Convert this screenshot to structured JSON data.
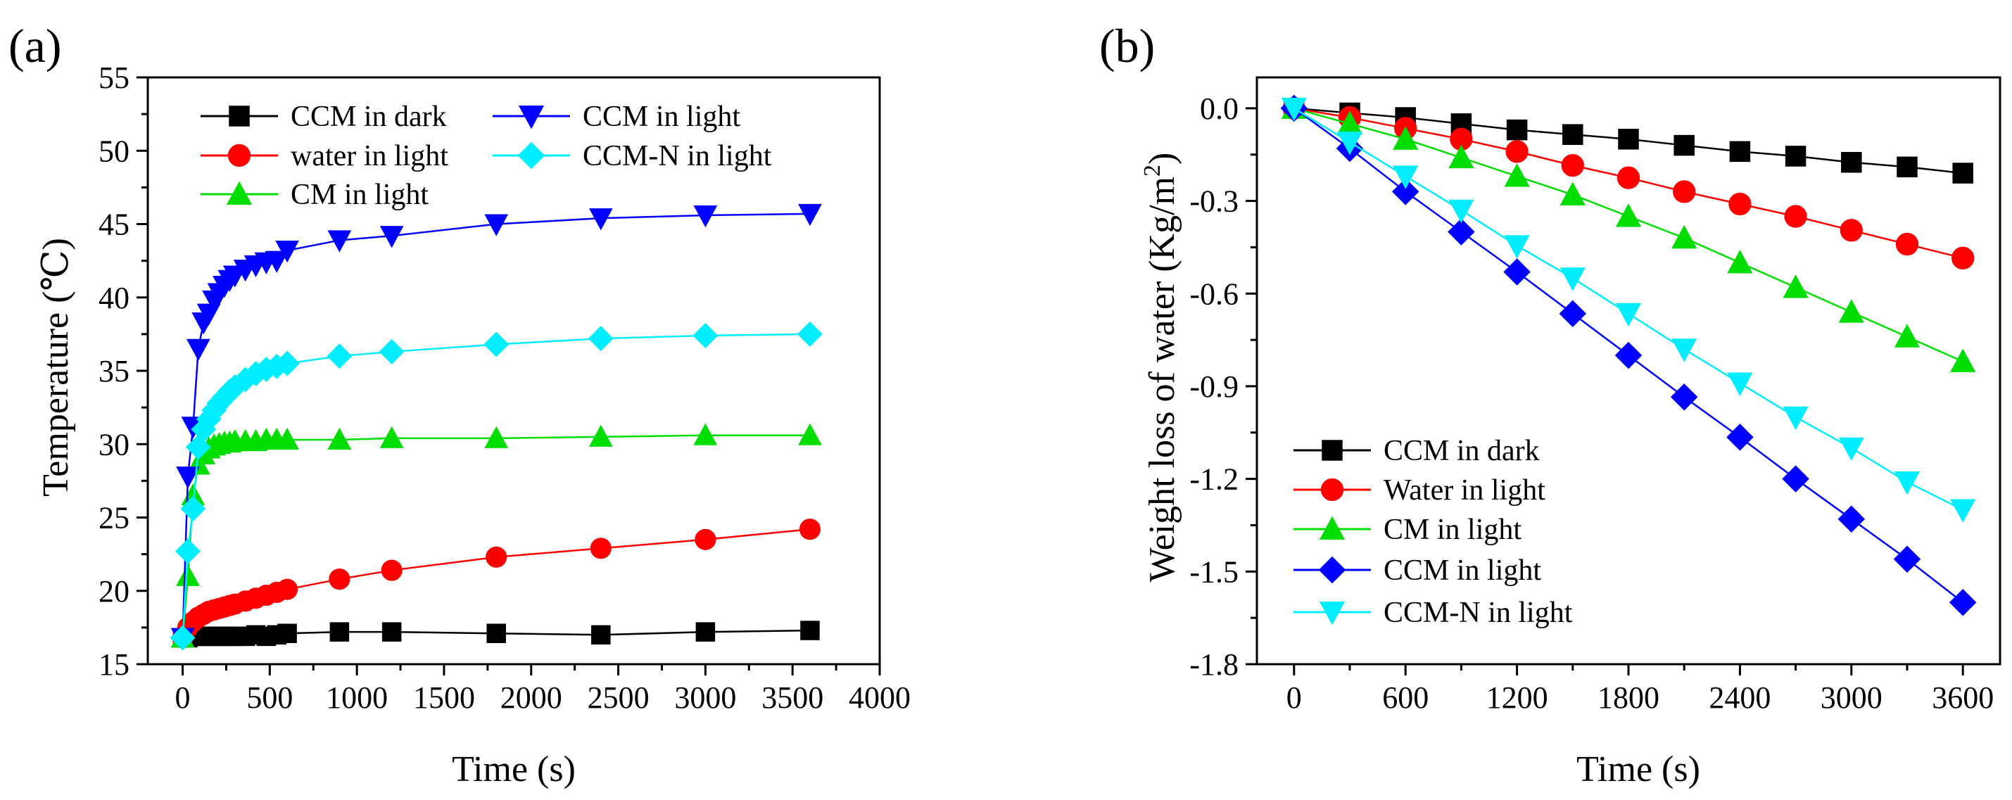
{
  "chart_data": [
    {
      "type": "line",
      "panel_label": "(a)",
      "xlabel": "Time (s)",
      "ylabel": "Temperature (℃)",
      "xlim": [
        -200,
        4000
      ],
      "ylim": [
        15,
        55
      ],
      "xticks": [
        0,
        500,
        1000,
        1500,
        2000,
        2500,
        3000,
        3500,
        4000
      ],
      "xtick_labels": [
        "0",
        "500",
        "1000",
        "1500",
        "2000",
        "2500",
        "3000",
        "3500",
        "4000"
      ],
      "yticks": [
        15,
        20,
        25,
        30,
        35,
        40,
        45,
        50,
        55
      ],
      "ytick_labels": [
        "15",
        "20",
        "25",
        "30",
        "35",
        "40",
        "45",
        "50",
        "55"
      ],
      "legend_position": "top-left, two columns",
      "series": [
        {
          "name": "CCM in dark",
          "color": "#000000",
          "marker": "square",
          "x": [
            0,
            30,
            60,
            90,
            120,
            150,
            180,
            210,
            240,
            270,
            300,
            360,
            420,
            480,
            540,
            600,
            900,
            1200,
            1800,
            2400,
            3000,
            3600
          ],
          "y": [
            16.8,
            16.8,
            16.9,
            16.9,
            16.9,
            16.9,
            16.9,
            16.9,
            16.9,
            16.9,
            16.9,
            16.9,
            17.0,
            16.9,
            17.0,
            17.1,
            17.2,
            17.2,
            17.1,
            17.0,
            17.2,
            17.3
          ]
        },
        {
          "name": "water in light",
          "color": "#ff0000",
          "marker": "circle",
          "x": [
            0,
            30,
            60,
            90,
            120,
            150,
            180,
            210,
            240,
            270,
            300,
            360,
            420,
            480,
            540,
            600,
            900,
            1200,
            1800,
            2400,
            3000,
            3600
          ],
          "y": [
            16.8,
            17.5,
            17.9,
            18.2,
            18.4,
            18.6,
            18.7,
            18.8,
            18.9,
            19.0,
            19.1,
            19.3,
            19.5,
            19.7,
            19.9,
            20.1,
            20.8,
            21.4,
            22.3,
            22.9,
            23.5,
            24.2
          ]
        },
        {
          "name": "CM in light",
          "color": "#00dd00",
          "marker": "triangle-up",
          "x": [
            0,
            30,
            60,
            90,
            120,
            150,
            180,
            210,
            240,
            270,
            300,
            360,
            420,
            480,
            540,
            600,
            900,
            1200,
            1800,
            2400,
            3000,
            3600
          ],
          "y": [
            16.8,
            21.0,
            26.5,
            28.6,
            29.3,
            29.7,
            29.9,
            30.0,
            30.1,
            30.1,
            30.2,
            30.2,
            30.2,
            30.3,
            30.3,
            30.3,
            30.3,
            30.4,
            30.4,
            30.5,
            30.6,
            30.6
          ]
        },
        {
          "name": "CCM in light",
          "color": "#0000ff",
          "marker": "triangle-down",
          "x": [
            0,
            30,
            60,
            90,
            120,
            150,
            180,
            210,
            240,
            270,
            300,
            360,
            420,
            480,
            540,
            600,
            900,
            1200,
            1800,
            2400,
            3000,
            3600
          ],
          "y": [
            16.8,
            27.8,
            31.2,
            36.5,
            38.3,
            38.9,
            39.8,
            40.3,
            40.8,
            41.2,
            41.5,
            41.9,
            42.2,
            42.4,
            42.5,
            43.2,
            43.9,
            44.2,
            45.0,
            45.4,
            45.6,
            45.7
          ]
        },
        {
          "name": "CCM-N in light",
          "color": "#00eeff",
          "marker": "diamond",
          "x": [
            0,
            30,
            60,
            90,
            120,
            150,
            180,
            210,
            240,
            270,
            300,
            360,
            420,
            480,
            540,
            600,
            900,
            1200,
            1800,
            2400,
            3000,
            3600
          ],
          "y": [
            16.8,
            22.7,
            25.6,
            29.8,
            31.0,
            31.7,
            32.3,
            32.8,
            33.2,
            33.6,
            33.9,
            34.4,
            34.8,
            35.1,
            35.3,
            35.5,
            36.0,
            36.3,
            36.8,
            37.2,
            37.4,
            37.5
          ]
        }
      ]
    },
    {
      "type": "line",
      "panel_label": "(b)",
      "xlabel": "Time (s)",
      "ylabel_main": "Weight loss of water (Kg/m",
      "ylabel_sup": "2",
      "ylabel_end": ")",
      "xlim": [
        -200,
        3800
      ],
      "ylim": [
        -1.8,
        0.1
      ],
      "xticks": [
        0,
        600,
        1200,
        1800,
        2400,
        3000,
        3600
      ],
      "xtick_labels": [
        "0",
        "600",
        "1200",
        "1800",
        "2400",
        "3000",
        "3600"
      ],
      "yticks": [
        0.0,
        -0.3,
        -0.6,
        -0.9,
        -1.2,
        -1.5,
        -1.8
      ],
      "ytick_labels": [
        "0.0",
        "-0.3",
        "-0.6",
        "-0.9",
        "-1.2",
        "-1.5",
        "-1.8"
      ],
      "legend_position": "bottom-left, one column",
      "series": [
        {
          "name": "CCM in dark",
          "color": "#000000",
          "marker": "square",
          "x": [
            0,
            300,
            600,
            900,
            1200,
            1500,
            1800,
            2100,
            2400,
            2700,
            3000,
            3300,
            3600
          ],
          "y": [
            0.0,
            -0.015,
            -0.03,
            -0.05,
            -0.07,
            -0.085,
            -0.1,
            -0.12,
            -0.14,
            -0.155,
            -0.175,
            -0.19,
            -0.21
          ]
        },
        {
          "name": "Water in light",
          "color": "#ff0000",
          "marker": "circle",
          "x": [
            0,
            300,
            600,
            900,
            1200,
            1500,
            1800,
            2100,
            2400,
            2700,
            3000,
            3300,
            3600
          ],
          "y": [
            0.0,
            -0.03,
            -0.065,
            -0.1,
            -0.14,
            -0.185,
            -0.225,
            -0.27,
            -0.31,
            -0.35,
            -0.395,
            -0.44,
            -0.485
          ]
        },
        {
          "name": "CM in light",
          "color": "#00dd00",
          "marker": "triangle-up",
          "x": [
            0,
            300,
            600,
            900,
            1200,
            1500,
            1800,
            2100,
            2400,
            2700,
            3000,
            3300,
            3600
          ],
          "y": [
            0.0,
            -0.05,
            -0.1,
            -0.16,
            -0.22,
            -0.28,
            -0.35,
            -0.42,
            -0.5,
            -0.58,
            -0.66,
            -0.74,
            -0.82
          ]
        },
        {
          "name": "CCM in light",
          "color": "#0000ff",
          "marker": "diamond",
          "x": [
            0,
            300,
            600,
            900,
            1200,
            1500,
            1800,
            2100,
            2400,
            2700,
            3000,
            3300,
            3600
          ],
          "y": [
            0.0,
            -0.13,
            -0.27,
            -0.4,
            -0.53,
            -0.665,
            -0.8,
            -0.935,
            -1.065,
            -1.2,
            -1.33,
            -1.46,
            -1.6
          ]
        },
        {
          "name": "CCM-N in light",
          "color": "#00eeff",
          "marker": "triangle-down",
          "x": [
            0,
            300,
            600,
            900,
            1200,
            1500,
            1800,
            2100,
            2400,
            2700,
            3000,
            3300,
            3600
          ],
          "y": [
            0.0,
            -0.11,
            -0.22,
            -0.33,
            -0.445,
            -0.55,
            -0.665,
            -0.78,
            -0.89,
            -1.0,
            -1.1,
            -1.21,
            -1.3
          ]
        }
      ]
    }
  ]
}
